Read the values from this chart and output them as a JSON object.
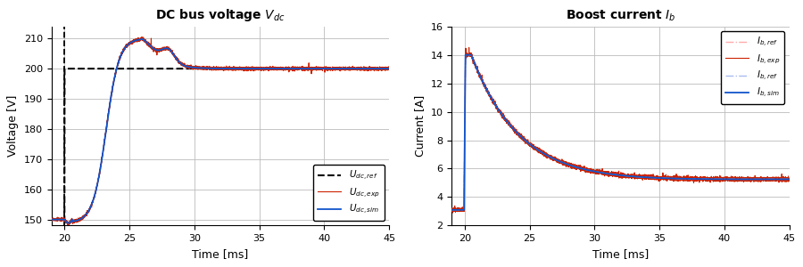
{
  "left_title": "DC bus voltage $\\mathbf{V_{dc}}$",
  "right_title": "Boost current $\\mathbf{I_{b}}$",
  "xlabel": "Time [ms]",
  "left_ylabel": "Voltage [V]",
  "right_ylabel": "Current [A]",
  "xlim": [
    19,
    45
  ],
  "left_ylim": [
    148,
    214
  ],
  "right_ylim": [
    2,
    16
  ],
  "left_yticks": [
    150,
    160,
    170,
    180,
    190,
    200,
    210
  ],
  "right_yticks": [
    2,
    4,
    6,
    8,
    10,
    12,
    14,
    16
  ],
  "xticks": [
    20,
    25,
    30,
    35,
    40,
    45
  ],
  "left_legend": [
    "$U_{dc,ref}$",
    "$U_{dc,exp}$",
    "$U_{dc,sim}$"
  ],
  "right_legend": [
    "$I_{b,ref}$",
    "$I_{b,exp}$",
    "$I_{b,ref}$",
    "$I_{b,sim}$"
  ],
  "color_black": "#000000",
  "color_red": "#cc2200",
  "color_blue": "#1155cc",
  "color_red_light": "#ffaaaa",
  "color_blue_light": "#aabbee",
  "background": "#ffffff",
  "grid_color": "#bbbbbb"
}
